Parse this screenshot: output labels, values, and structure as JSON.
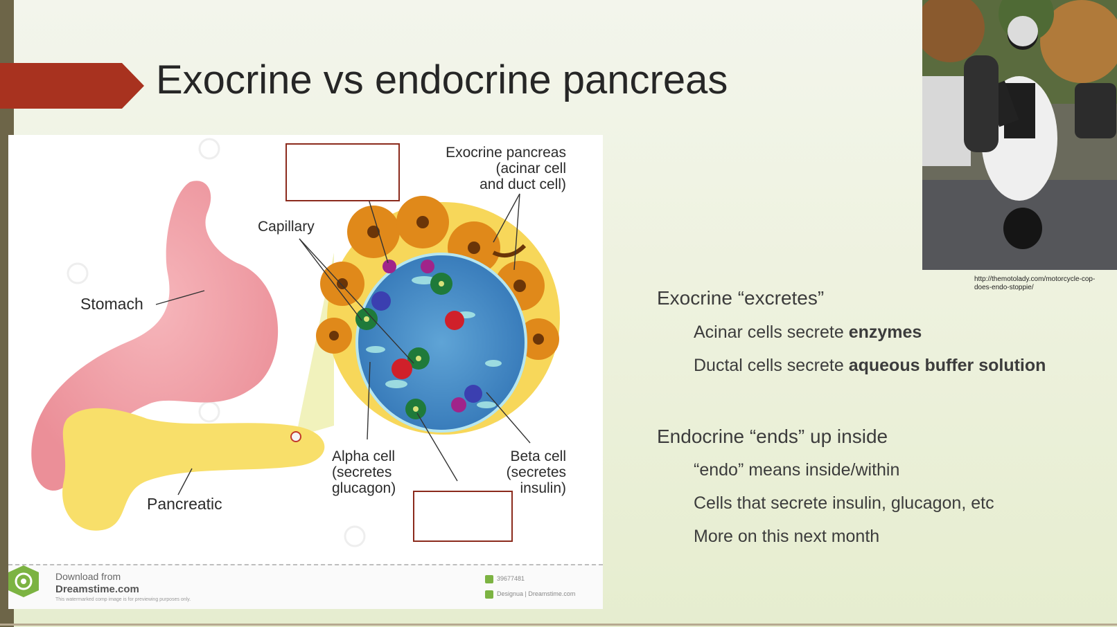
{
  "slide": {
    "title": "Exocrine vs endocrine pancreas"
  },
  "diagram": {
    "labels": {
      "exocrine": [
        "Exocrine pancreas",
        "(acinar cell",
        "and duct cell)"
      ],
      "capillary": "Capillary",
      "stomach": "Stomach",
      "pancreatic": "Pancreatic",
      "alpha": [
        "Alpha cell",
        "(secretes",
        "glucagon)"
      ],
      "beta": [
        "Beta cell",
        "(secretes",
        "insulin)"
      ]
    },
    "footer": {
      "download": "Download from",
      "site": "Dreamstime.com",
      "note": "This watermarked comp image is for previewing purposes only.",
      "id": "39677481",
      "credit": "Designua | Dreamstime.com"
    }
  },
  "photo": {
    "caption": [
      "http://themotolady.com/motorcycle-cop-",
      "does-endo-stoppie/"
    ]
  },
  "bullets": {
    "exocrine_heading": "Exocrine “excretes”",
    "acinar": {
      "prefix": "Acinar cells secrete ",
      "bold": "enzymes"
    },
    "ductal": {
      "prefix": "Ductal cells secrete ",
      "bold": "aqueous buffer solution"
    },
    "endocrine_heading": "Endocrine “ends” up inside",
    "endo_means": "“endo” means inside/within",
    "cells_secrete": "Cells that secrete insulin, glucagon, etc",
    "next_month": "More on this next month"
  },
  "colors": {
    "title_arrow": "#a8321f",
    "left_bar": "#6d6548",
    "box_border": "#8b2a1c"
  }
}
